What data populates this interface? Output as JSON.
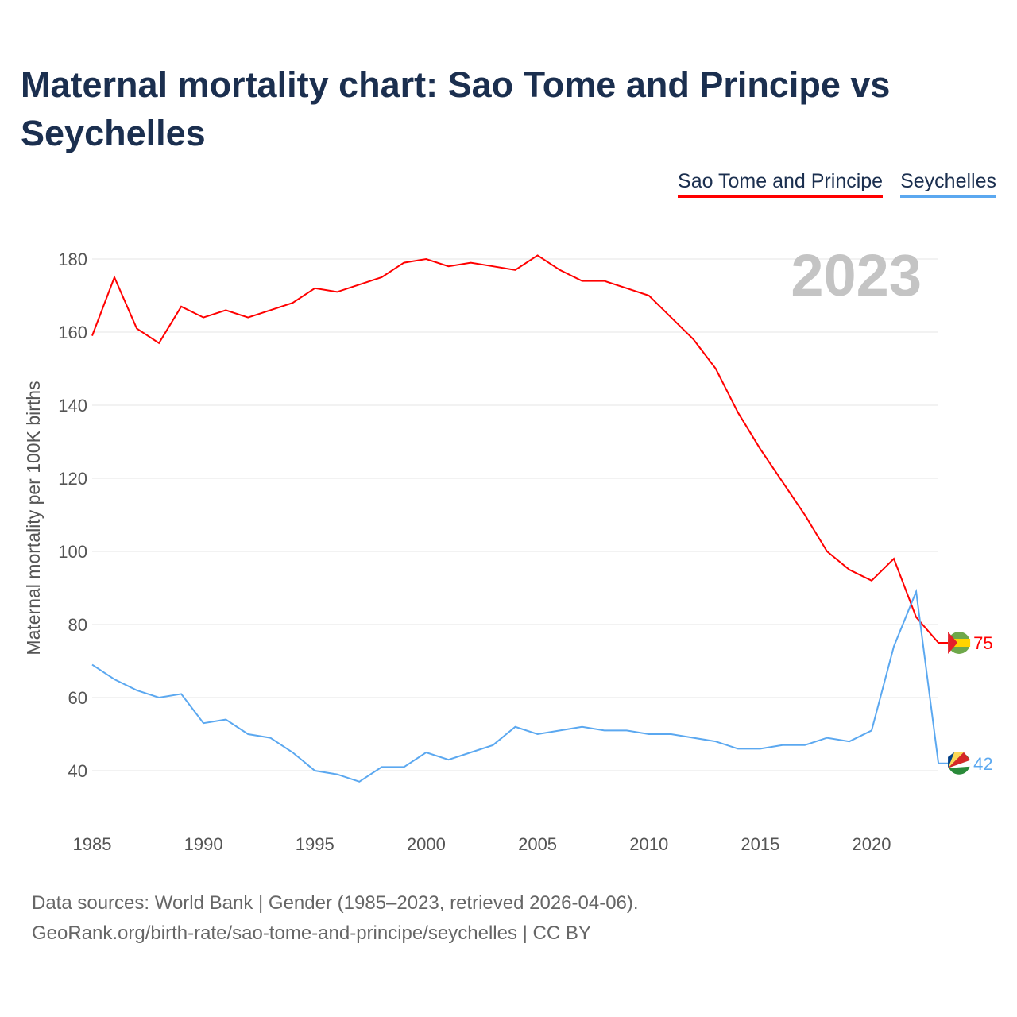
{
  "title": "Maternal mortality chart: Sao Tome and Principe vs Seychelles",
  "footer": {
    "line1": "Data sources: World Bank | Gender (1985–2023, retrieved 2026-04-06).",
    "line2": "GeoRank.org/birth-rate/sao-tome-and-principe/seychelles | CC BY"
  },
  "chart_data": {
    "type": "line",
    "title": "Maternal mortality chart: Sao Tome and Principe vs Seychelles",
    "ylabel": "Maternal mortality per 100K births",
    "xlabel": "",
    "year_label": "2023",
    "ylim": [
      30,
      190
    ],
    "xlim": [
      1985,
      2023
    ],
    "yticks": [
      40,
      60,
      80,
      100,
      120,
      140,
      160,
      180
    ],
    "xticks": [
      1985,
      1990,
      1995,
      2000,
      2005,
      2010,
      2015,
      2020
    ],
    "grid": true,
    "legend_position": "top-right",
    "x": [
      1985,
      1986,
      1987,
      1988,
      1989,
      1990,
      1991,
      1992,
      1993,
      1994,
      1995,
      1996,
      1997,
      1998,
      1999,
      2000,
      2001,
      2002,
      2003,
      2004,
      2005,
      2006,
      2007,
      2008,
      2009,
      2010,
      2011,
      2012,
      2013,
      2014,
      2015,
      2016,
      2017,
      2018,
      2019,
      2020,
      2021,
      2022,
      2023
    ],
    "series": [
      {
        "name": "Sao Tome and Principe",
        "color": "#ff0000",
        "end_label": "75",
        "values": [
          159,
          175,
          161,
          157,
          167,
          164,
          166,
          164,
          166,
          168,
          172,
          171,
          173,
          175,
          179,
          180,
          178,
          179,
          178,
          177,
          181,
          177,
          174,
          174,
          172,
          170,
          164,
          158,
          150,
          138,
          128,
          119,
          110,
          100,
          95,
          92,
          98,
          82,
          75
        ]
      },
      {
        "name": "Seychelles",
        "color": "#5ba8f0",
        "end_label": "42",
        "values": [
          69,
          65,
          62,
          60,
          61,
          53,
          54,
          50,
          49,
          45,
          40,
          39,
          37,
          41,
          41,
          45,
          43,
          45,
          47,
          52,
          50,
          51,
          52,
          51,
          51,
          50,
          50,
          49,
          48,
          46,
          46,
          47,
          47,
          49,
          48,
          51,
          74,
          89,
          42
        ]
      }
    ]
  }
}
